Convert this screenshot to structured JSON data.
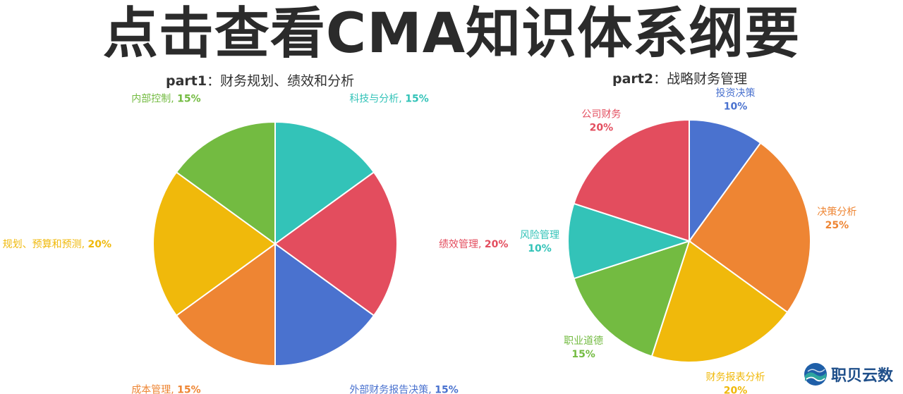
{
  "banner": {
    "text": "点击查看CMA知识体系纲要"
  },
  "chart_data": [
    {
      "type": "pie",
      "title_bold": "part1",
      "title_rest": "：财务规划、绩效和分析",
      "label_style": "inline",
      "slices": [
        {
          "label": "科技与分析",
          "value": 15,
          "pct": "15%",
          "color": "#33c3b8"
        },
        {
          "label": "绩效管理",
          "value": 20,
          "pct": "20%",
          "color": "#e34d5e"
        },
        {
          "label": "外部财务报告决策",
          "value": 15,
          "pct": "15%",
          "color": "#4a72cf"
        },
        {
          "label": "成本管理",
          "value": 15,
          "pct": "15%",
          "color": "#ee8533"
        },
        {
          "label": "规划、预算和预测",
          "value": 20,
          "pct": "20%",
          "color": "#f0b90b"
        },
        {
          "label": "内部控制",
          "value": 15,
          "pct": "15%",
          "color": "#73bb41"
        }
      ]
    },
    {
      "type": "pie",
      "title_bold": "part2",
      "title_rest": "：战略财务管理",
      "label_style": "stacked",
      "slices": [
        {
          "label": "投资决策",
          "value": 10,
          "pct": "10%",
          "color": "#4a72cf"
        },
        {
          "label": "决策分析",
          "value": 25,
          "pct": "25%",
          "color": "#ee8533"
        },
        {
          "label": "财务报表分析",
          "value": 20,
          "pct": "20%",
          "color": "#f0b90b"
        },
        {
          "label": "职业道德",
          "value": 15,
          "pct": "15%",
          "color": "#73bb41"
        },
        {
          "label": "风险管理",
          "value": 10,
          "pct": "10%",
          "color": "#33c3b8"
        },
        {
          "label": "公司财务",
          "value": 20,
          "pct": "20%",
          "color": "#e34d5e"
        }
      ]
    }
  ],
  "logo": {
    "text": "职贝云数",
    "icon": "globe-wave-logo-icon"
  }
}
